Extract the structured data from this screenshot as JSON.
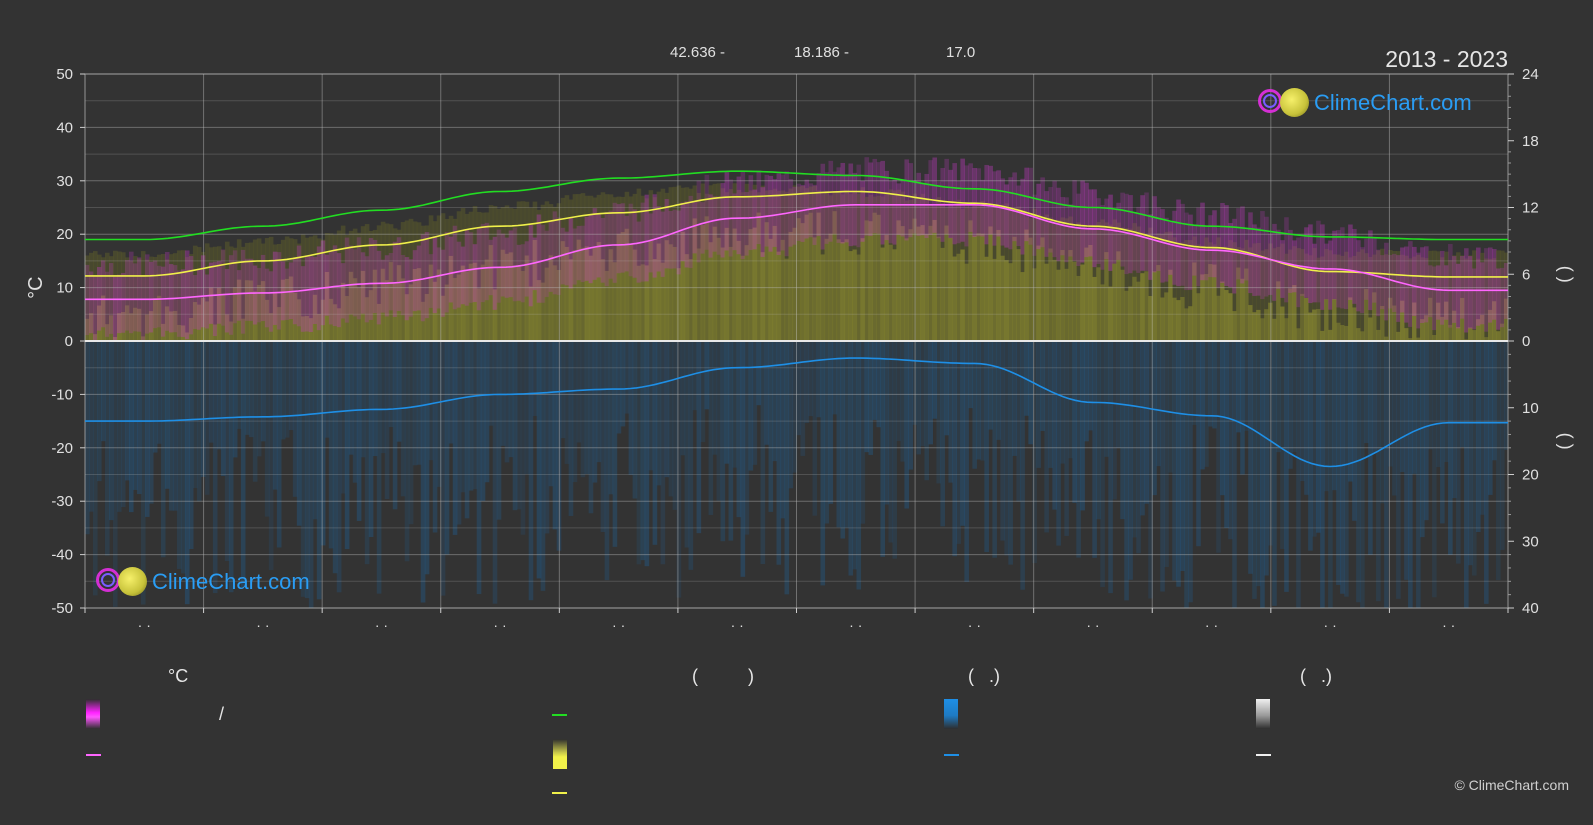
{
  "header": {
    "stat1": "42.636 -",
    "stat2": "18.186 -",
    "stat3": "17.0",
    "date_range": "2013 - 2023"
  },
  "logo_text": "ClimeChart.com",
  "copyright": "© ClimeChart.com",
  "chart_data": {
    "type": "line",
    "left_axis": {
      "label": "°C",
      "range": [
        -50,
        50
      ],
      "ticks": [
        50,
        40,
        30,
        20,
        10,
        0,
        -10,
        -20,
        -30,
        -40,
        -50
      ]
    },
    "right_axis_top": {
      "label": "(   )",
      "range": [
        0,
        24
      ],
      "ticks": [
        24,
        18,
        12,
        6,
        0
      ]
    },
    "right_axis_bottom": {
      "label": "(  )",
      "range": [
        0,
        40
      ],
      "ticks": [
        10,
        20,
        30,
        40
      ]
    },
    "x_tick_labels": [
      "· ·",
      "· ·",
      "· ·",
      "· ·",
      "· ·",
      "· ·",
      "· ·",
      "· ·",
      "· ·",
      "· ·",
      "· ·",
      "· ·"
    ],
    "grid": true,
    "months": 12,
    "series": [
      {
        "key": "daylight",
        "color": "#22dd22",
        "values": [
          19.0,
          21.5,
          24.5,
          28.0,
          30.5,
          31.8,
          31.0,
          28.5,
          25.0,
          21.5,
          19.5,
          19.0
        ]
      },
      {
        "key": "sunshine",
        "color": "#f0f04a",
        "values": [
          12.2,
          15.0,
          18.0,
          21.5,
          24.0,
          27.0,
          28.0,
          25.8,
          21.5,
          17.5,
          13.0,
          12.0
        ]
      },
      {
        "key": "temp_mean",
        "color": "#ff66ff",
        "values": [
          7.8,
          9.0,
          10.8,
          13.8,
          18.0,
          23.0,
          25.5,
          25.5,
          21.0,
          17.0,
          13.5,
          9.5
        ]
      },
      {
        "key": "precipitation",
        "color": "#1e8fe6",
        "values": [
          -15.0,
          -14.2,
          -12.8,
          -10.0,
          -9.0,
          -5.0,
          -3.2,
          -4.2,
          -11.5,
          -14.0,
          -23.5,
          -15.3
        ]
      }
    ]
  },
  "legend": {
    "col1": {
      "header": "°C",
      "item1": "/"
    },
    "col2": {
      "header": "(          )"
    },
    "col3": {
      "header": "(   .)"
    },
    "col4": {
      "header": "(   .)"
    }
  }
}
